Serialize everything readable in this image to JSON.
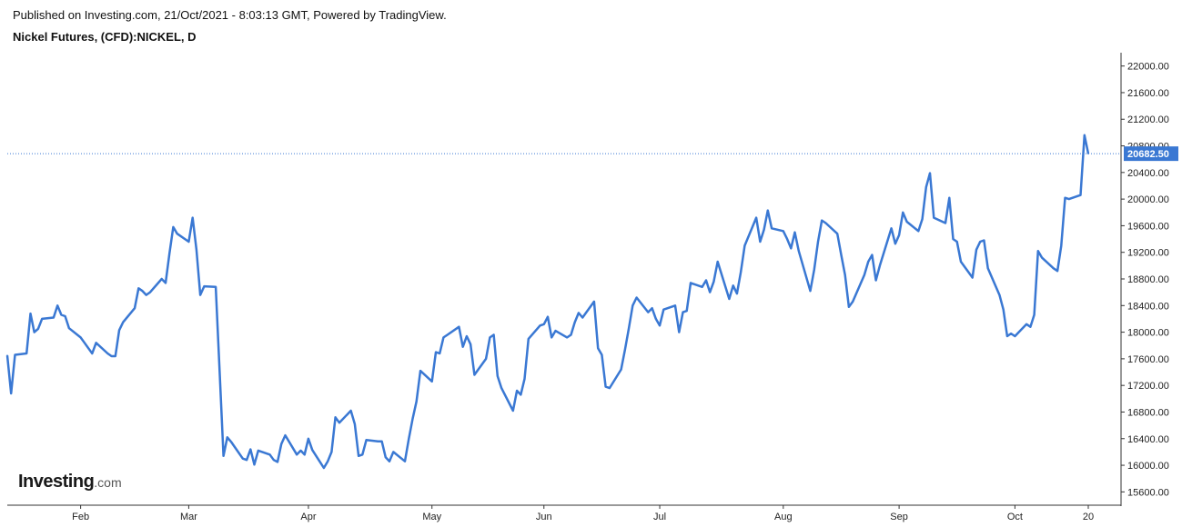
{
  "header": {
    "published_line": "Published on Investing.com, 21/Oct/2021 - 8:03:13 GMT, Powered by TradingView.",
    "symbol_title": "Nickel Futures, (CFD):NICKEL, D"
  },
  "logo": {
    "main": "Investing",
    "suffix": ".com"
  },
  "colors": {
    "line": "#3a78d3",
    "last_price_tag": "#3a78d3",
    "axis": "#333333"
  },
  "chart_data": {
    "type": "line",
    "title": "Nickel Futures, (CFD):NICKEL, D",
    "xlabel": "",
    "ylabel": "",
    "ylim": [
      15400,
      22200
    ],
    "y_ticks": [
      "15600.00",
      "16000.00",
      "16400.00",
      "16800.00",
      "17200.00",
      "17600.00",
      "18000.00",
      "18400.00",
      "18800.00",
      "19200.00",
      "19600.00",
      "20000.00",
      "20400.00",
      "20800.00",
      "21200.00",
      "21600.00",
      "22000.00"
    ],
    "x_tick_labels": [
      "Feb",
      "Mar",
      "Apr",
      "May",
      "Jun",
      "Jul",
      "Aug",
      "Sep",
      "Oct",
      "20"
    ],
    "x_tick_dates": [
      "2021-02-01",
      "2021-03-01",
      "2021-04-01",
      "2021-05-03",
      "2021-06-01",
      "2021-07-01",
      "2021-08-02",
      "2021-09-01",
      "2021-10-01",
      "2021-10-20"
    ],
    "last_price": 20682.5,
    "last_price_label": "20682.50",
    "grid": false,
    "series": [
      {
        "points": [
          [
            "2021-01-13",
            17650
          ],
          [
            "2021-01-14",
            17080
          ],
          [
            "2021-01-15",
            17660
          ],
          [
            "2021-01-18",
            17680
          ],
          [
            "2021-01-19",
            18280
          ],
          [
            "2021-01-20",
            18000
          ],
          [
            "2021-01-21",
            18050
          ],
          [
            "2021-01-22",
            18200
          ],
          [
            "2021-01-25",
            18220
          ],
          [
            "2021-01-26",
            18400
          ],
          [
            "2021-01-27",
            18260
          ],
          [
            "2021-01-28",
            18240
          ],
          [
            "2021-01-29",
            18060
          ],
          [
            "2021-02-01",
            17920
          ],
          [
            "2021-02-02",
            17840
          ],
          [
            "2021-02-03",
            17760
          ],
          [
            "2021-02-04",
            17680
          ],
          [
            "2021-02-05",
            17840
          ],
          [
            "2021-02-08",
            17680
          ],
          [
            "2021-02-09",
            17640
          ],
          [
            "2021-02-10",
            17640
          ],
          [
            "2021-02-11",
            18030
          ],
          [
            "2021-02-12",
            18150
          ],
          [
            "2021-02-15",
            18360
          ],
          [
            "2021-02-16",
            18660
          ],
          [
            "2021-02-17",
            18620
          ],
          [
            "2021-02-18",
            18560
          ],
          [
            "2021-02-19",
            18600
          ],
          [
            "2021-02-22",
            18800
          ],
          [
            "2021-02-23",
            18740
          ],
          [
            "2021-02-24",
            19180
          ],
          [
            "2021-02-25",
            19580
          ],
          [
            "2021-02-26",
            19480
          ],
          [
            "2021-03-01",
            19360
          ],
          [
            "2021-03-02",
            19720
          ],
          [
            "2021-03-03",
            19240
          ],
          [
            "2021-03-04",
            18560
          ],
          [
            "2021-03-05",
            18690
          ],
          [
            "2021-03-08",
            18680
          ],
          [
            "2021-03-09",
            17400
          ],
          [
            "2021-03-10",
            16140
          ],
          [
            "2021-03-11",
            16420
          ],
          [
            "2021-03-12",
            16350
          ],
          [
            "2021-03-15",
            16100
          ],
          [
            "2021-03-16",
            16080
          ],
          [
            "2021-03-17",
            16240
          ],
          [
            "2021-03-18",
            16010
          ],
          [
            "2021-03-19",
            16220
          ],
          [
            "2021-03-22",
            16160
          ],
          [
            "2021-03-23",
            16080
          ],
          [
            "2021-03-24",
            16050
          ],
          [
            "2021-03-25",
            16320
          ],
          [
            "2021-03-26",
            16450
          ],
          [
            "2021-03-29",
            16160
          ],
          [
            "2021-03-30",
            16220
          ],
          [
            "2021-03-31",
            16160
          ],
          [
            "2021-04-01",
            16400
          ],
          [
            "2021-04-02",
            16230
          ],
          [
            "2021-04-05",
            15960
          ],
          [
            "2021-04-06",
            16060
          ],
          [
            "2021-04-07",
            16200
          ],
          [
            "2021-04-08",
            16720
          ],
          [
            "2021-04-09",
            16640
          ],
          [
            "2021-04-12",
            16820
          ],
          [
            "2021-04-13",
            16620
          ],
          [
            "2021-04-14",
            16140
          ],
          [
            "2021-04-15",
            16160
          ],
          [
            "2021-04-16",
            16380
          ],
          [
            "2021-04-19",
            16360
          ],
          [
            "2021-04-20",
            16360
          ],
          [
            "2021-04-21",
            16120
          ],
          [
            "2021-04-22",
            16060
          ],
          [
            "2021-04-23",
            16200
          ],
          [
            "2021-04-26",
            16060
          ],
          [
            "2021-04-27",
            16400
          ],
          [
            "2021-04-28",
            16700
          ],
          [
            "2021-04-29",
            16960
          ],
          [
            "2021-04-30",
            17420
          ],
          [
            "2021-05-03",
            17260
          ],
          [
            "2021-05-04",
            17700
          ],
          [
            "2021-05-05",
            17680
          ],
          [
            "2021-05-06",
            17920
          ],
          [
            "2021-05-07",
            17960
          ],
          [
            "2021-05-10",
            18080
          ],
          [
            "2021-05-11",
            17780
          ],
          [
            "2021-05-12",
            17940
          ],
          [
            "2021-05-13",
            17820
          ],
          [
            "2021-05-14",
            17360
          ],
          [
            "2021-05-17",
            17600
          ],
          [
            "2021-05-18",
            17920
          ],
          [
            "2021-05-19",
            17960
          ],
          [
            "2021-05-20",
            17340
          ],
          [
            "2021-05-21",
            17160
          ],
          [
            "2021-05-24",
            16820
          ],
          [
            "2021-05-25",
            17120
          ],
          [
            "2021-05-26",
            17060
          ],
          [
            "2021-05-27",
            17300
          ],
          [
            "2021-05-28",
            17900
          ],
          [
            "2021-05-31",
            18100
          ],
          [
            "2021-06-01",
            18120
          ],
          [
            "2021-06-02",
            18230
          ],
          [
            "2021-06-03",
            17920
          ],
          [
            "2021-06-04",
            18020
          ],
          [
            "2021-06-07",
            17920
          ],
          [
            "2021-06-08",
            17960
          ],
          [
            "2021-06-09",
            18150
          ],
          [
            "2021-06-10",
            18290
          ],
          [
            "2021-06-11",
            18220
          ],
          [
            "2021-06-14",
            18460
          ],
          [
            "2021-06-15",
            17760
          ],
          [
            "2021-06-16",
            17660
          ],
          [
            "2021-06-17",
            17180
          ],
          [
            "2021-06-18",
            17160
          ],
          [
            "2021-06-21",
            17440
          ],
          [
            "2021-06-22",
            17740
          ],
          [
            "2021-06-23",
            18060
          ],
          [
            "2021-06-24",
            18400
          ],
          [
            "2021-06-25",
            18520
          ],
          [
            "2021-06-28",
            18300
          ],
          [
            "2021-06-29",
            18360
          ],
          [
            "2021-06-30",
            18200
          ],
          [
            "2021-07-01",
            18100
          ],
          [
            "2021-07-02",
            18340
          ],
          [
            "2021-07-05",
            18400
          ],
          [
            "2021-07-06",
            18000
          ],
          [
            "2021-07-07",
            18300
          ],
          [
            "2021-07-08",
            18320
          ],
          [
            "2021-07-09",
            18740
          ],
          [
            "2021-07-12",
            18680
          ],
          [
            "2021-07-13",
            18780
          ],
          [
            "2021-07-14",
            18600
          ],
          [
            "2021-07-15",
            18760
          ],
          [
            "2021-07-16",
            19060
          ],
          [
            "2021-07-19",
            18500
          ],
          [
            "2021-07-20",
            18700
          ],
          [
            "2021-07-21",
            18580
          ],
          [
            "2021-07-22",
            18900
          ],
          [
            "2021-07-23",
            19300
          ],
          [
            "2021-07-26",
            19720
          ],
          [
            "2021-07-27",
            19360
          ],
          [
            "2021-07-28",
            19540
          ],
          [
            "2021-07-29",
            19830
          ],
          [
            "2021-07-30",
            19560
          ],
          [
            "2021-08-02",
            19520
          ],
          [
            "2021-08-03",
            19400
          ],
          [
            "2021-08-04",
            19260
          ],
          [
            "2021-08-05",
            19500
          ],
          [
            "2021-08-06",
            19220
          ],
          [
            "2021-08-09",
            18620
          ],
          [
            "2021-08-10",
            18940
          ],
          [
            "2021-08-11",
            19360
          ],
          [
            "2021-08-12",
            19680
          ],
          [
            "2021-08-13",
            19640
          ],
          [
            "2021-08-16",
            19480
          ],
          [
            "2021-08-17",
            19160
          ],
          [
            "2021-08-18",
            18860
          ],
          [
            "2021-08-19",
            18380
          ],
          [
            "2021-08-20",
            18460
          ],
          [
            "2021-08-23",
            18860
          ],
          [
            "2021-08-24",
            19060
          ],
          [
            "2021-08-25",
            19160
          ],
          [
            "2021-08-26",
            18780
          ],
          [
            "2021-08-27",
            19000
          ],
          [
            "2021-08-30",
            19560
          ],
          [
            "2021-08-31",
            19330
          ],
          [
            "2021-09-01",
            19460
          ],
          [
            "2021-09-02",
            19800
          ],
          [
            "2021-09-03",
            19660
          ],
          [
            "2021-09-06",
            19520
          ],
          [
            "2021-09-07",
            19700
          ],
          [
            "2021-09-08",
            20180
          ],
          [
            "2021-09-09",
            20390
          ],
          [
            "2021-09-10",
            19720
          ],
          [
            "2021-09-13",
            19640
          ],
          [
            "2021-09-14",
            20020
          ],
          [
            "2021-09-15",
            19400
          ],
          [
            "2021-09-16",
            19360
          ],
          [
            "2021-09-17",
            19060
          ],
          [
            "2021-09-20",
            18820
          ],
          [
            "2021-09-21",
            19240
          ],
          [
            "2021-09-22",
            19360
          ],
          [
            "2021-09-23",
            19380
          ],
          [
            "2021-09-24",
            18960
          ],
          [
            "2021-09-27",
            18560
          ],
          [
            "2021-09-28",
            18340
          ],
          [
            "2021-09-29",
            17940
          ],
          [
            "2021-09-30",
            17980
          ],
          [
            "2021-10-01",
            17940
          ],
          [
            "2021-10-04",
            18120
          ],
          [
            "2021-10-05",
            18080
          ],
          [
            "2021-10-06",
            18260
          ],
          [
            "2021-10-07",
            19220
          ],
          [
            "2021-10-08",
            19120
          ],
          [
            "2021-10-11",
            18960
          ],
          [
            "2021-10-12",
            18920
          ],
          [
            "2021-10-13",
            19300
          ],
          [
            "2021-10-14",
            20020
          ],
          [
            "2021-10-15",
            20000
          ],
          [
            "2021-10-18",
            20060
          ],
          [
            "2021-10-19",
            20960
          ],
          [
            "2021-10-20",
            20682.5
          ]
        ]
      }
    ]
  }
}
